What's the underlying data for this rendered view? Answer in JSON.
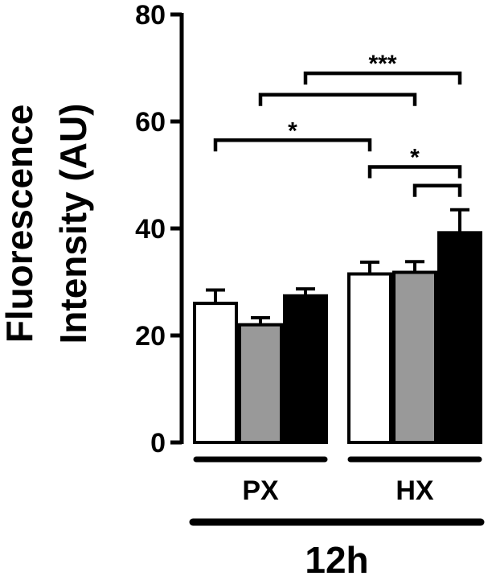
{
  "chart_data": {
    "type": "bar",
    "title": "",
    "ylabel_line1": "Fluorescence",
    "ylabel_line2": "Intensity (AU)",
    "ylim": [
      0,
      80
    ],
    "yticks": [
      "0",
      "20",
      "40",
      "60",
      "80"
    ],
    "groups": [
      "PX",
      "HX"
    ],
    "time_label": "12h",
    "series": [
      {
        "color": "#ffffff",
        "values": [
          26,
          31.5
        ],
        "errors": [
          2.5,
          2.2
        ]
      },
      {
        "color": "#999999",
        "values": [
          22,
          31.8
        ],
        "errors": [
          1.3,
          2.0
        ]
      },
      {
        "color": "#000000",
        "values": [
          27.4,
          39.2
        ],
        "errors": [
          1.3,
          4.3
        ]
      }
    ],
    "significance": [
      {
        "label": "*",
        "from": [
          0,
          0
        ],
        "to": [
          1,
          0
        ],
        "y": 56.5
      },
      {
        "label": "",
        "from": [
          0,
          1
        ],
        "to": [
          1,
          1
        ],
        "y": 65
      },
      {
        "label": "***",
        "from": [
          0,
          2
        ],
        "to": [
          1,
          2
        ],
        "y": 69
      },
      {
        "label": "*",
        "from": [
          1,
          0
        ],
        "to": [
          1,
          2
        ],
        "y": 51.5
      },
      {
        "label": "",
        "from": [
          1,
          1
        ],
        "to": [
          1,
          2
        ],
        "y": 48
      }
    ]
  }
}
